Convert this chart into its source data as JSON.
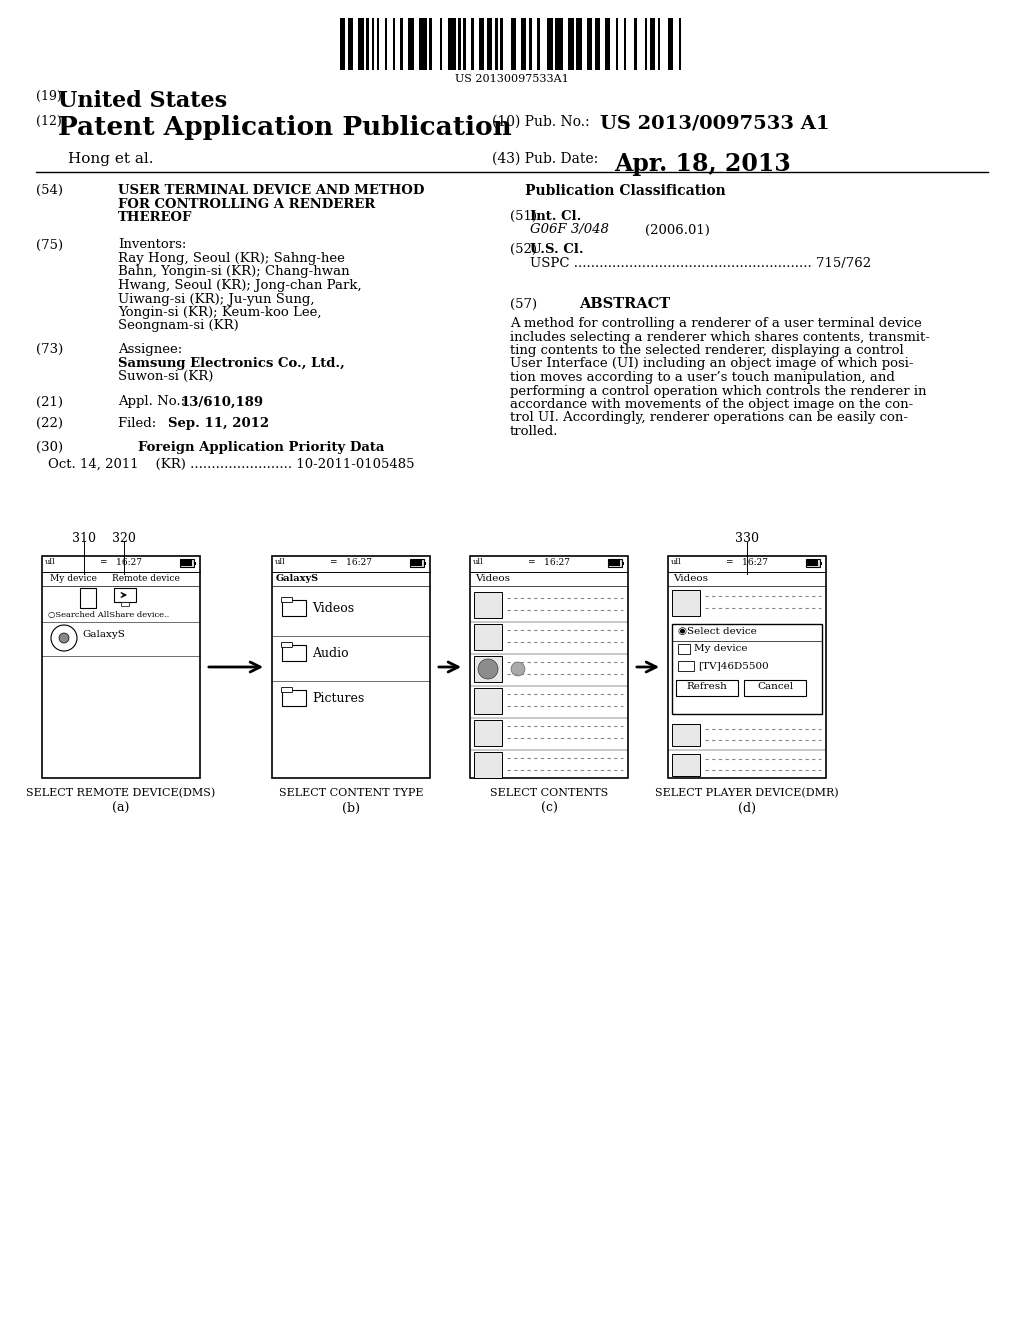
{
  "background_color": "#ffffff",
  "barcode_text": "US 20130097533A1",
  "title_19_small": "(19)",
  "title_19_large": "United States",
  "title_12_small": "(12)",
  "title_12_large": "Patent Application Publication",
  "pub_no_label": "(10) Pub. No.:",
  "pub_no_value": "US 2013/0097533 A1",
  "author": "Hong et al.",
  "pub_date_label": "(43) Pub. Date:",
  "pub_date_value": "Apr. 18, 2013",
  "field54_label": "(54)",
  "field54_lines": [
    "USER TERMINAL DEVICE AND METHOD",
    "FOR CONTROLLING A RENDERER",
    "THEREOF"
  ],
  "field75_label": "(75)",
  "field75_title": "Inventors:",
  "field75_lines": [
    "Ray Hong, Seoul (KR); Sahng-hee",
    "Bahn, Yongin-si (KR); Chang-hwan",
    "Hwang, Seoul (KR); Jong-chan Park,",
    "Uiwang-si (KR); Ju-yun Sung,",
    "Yongin-si (KR); Keum-koo Lee,",
    "Seongnam-si (KR)"
  ],
  "field73_label": "(73)",
  "field73_title": "Assignee:",
  "field73_line1": "Samsung Electronics Co., Ltd.,",
  "field73_line2": "Suwon-si (KR)",
  "field21_label": "(21)",
  "field21_pre": "Appl. No.: ",
  "field21_bold": "13/610,189",
  "field22_label": "(22)",
  "field22_pre": "Filed:       ",
  "field22_bold": "Sep. 11, 2012",
  "field30_label": "(30)",
  "field30_title": "Foreign Application Priority Data",
  "field30_detail": "Oct. 14, 2011    (KR) ........................ 10-2011-0105485",
  "pub_class_title": "Publication Classification",
  "field51_label": "(51)",
  "field51_title": "Int. Cl.",
  "field51_class": "G06F 3/048",
  "field51_year": "(2006.01)",
  "field52_label": "(52)",
  "field52_title": "U.S. Cl.",
  "field52_text": "USPC ........................................................ 715/762",
  "field57_label": "(57)",
  "field57_title": "ABSTRACT",
  "abstract_lines": [
    "A method for controlling a renderer of a user terminal device",
    "includes selecting a renderer which shares contents, transmit-",
    "ting contents to the selected renderer, displaying a control",
    "User Interface (UI) including an object image of which posi-",
    "tion moves according to a user’s touch manipulation, and",
    "performing a control operation which controls the renderer in",
    "accordance with movements of the object image on the con-",
    "trol UI. Accordingly, renderer operations can be easily con-",
    "trolled."
  ],
  "ref_310": "310",
  "ref_320": "320",
  "ref_330": "330",
  "labels_line1": [
    "SELECT REMOTE DEVICE(DMS)",
    "SELECT CONTENT TYPE",
    "SELECT CONTENTS",
    "SELECT PLAYER DEVICE(DMR)"
  ],
  "labels_line2": [
    "(a)",
    "(b)",
    "(c)",
    "(d)"
  ]
}
